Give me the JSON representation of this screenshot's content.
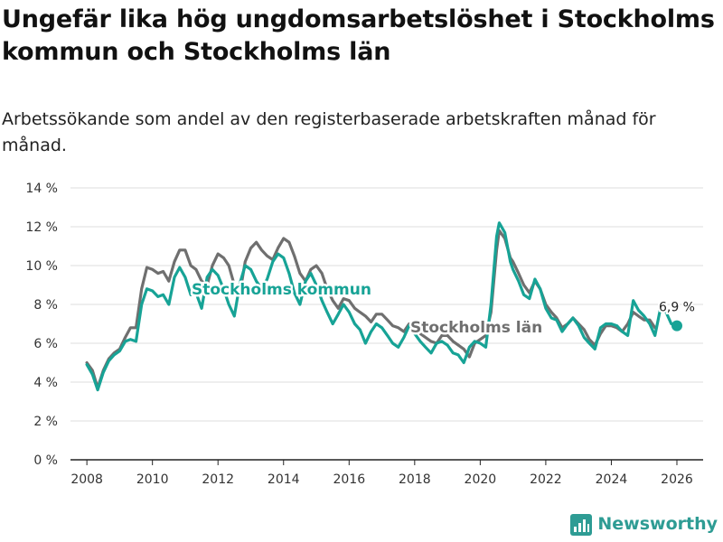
{
  "header": {
    "title": "Ungefär lika hög ungdomsarbetslöshet i Stockholms kommun och Stockholms län",
    "subtitle": "Arbetssökande som andel av den registerbaserade arbetskraften månad för månad."
  },
  "brand": {
    "name": "Newsworthy",
    "color": "#2e9c94"
  },
  "colors": {
    "kommun": "#17a396",
    "lan": "#6f6f6f",
    "grid": "#dddddd",
    "axis": "#222222"
  },
  "chart_data": {
    "type": "line",
    "title": "Ungefär lika hög ungdomsarbetslöshet i Stockholms kommun och Stockholms län",
    "xlabel": "",
    "ylabel": "",
    "xlim": [
      2007.5,
      2026.8
    ],
    "ylim": [
      0,
      14
    ],
    "grid": true,
    "legend": "inline labels",
    "y_ticks": [
      0,
      2,
      4,
      6,
      8,
      10,
      12,
      14
    ],
    "y_tick_labels": [
      "0 %",
      "2 %",
      "4 %",
      "6 %",
      "8 %",
      "10 %",
      "12 %",
      "14 %"
    ],
    "x_ticks": [
      2008,
      2010,
      2012,
      2014,
      2016,
      2018,
      2020,
      2022,
      2024,
      2026
    ],
    "x_tick_labels": [
      "2008",
      "2010",
      "2012",
      "2014",
      "2016",
      "2018",
      "2020",
      "2022",
      "2024",
      "2026"
    ],
    "series": [
      {
        "name": "Stockholms län",
        "label": "Stockholms län",
        "color": "#6f6f6f",
        "points": [
          [
            2008.0,
            5.0
          ],
          [
            2008.17,
            4.6
          ],
          [
            2008.33,
            3.7
          ],
          [
            2008.5,
            4.6
          ],
          [
            2008.67,
            5.2
          ],
          [
            2008.83,
            5.5
          ],
          [
            2009.0,
            5.7
          ],
          [
            2009.17,
            6.3
          ],
          [
            2009.33,
            6.8
          ],
          [
            2009.5,
            6.8
          ],
          [
            2009.67,
            8.8
          ],
          [
            2009.83,
            9.9
          ],
          [
            2010.0,
            9.8
          ],
          [
            2010.17,
            9.6
          ],
          [
            2010.33,
            9.7
          ],
          [
            2010.5,
            9.2
          ],
          [
            2010.67,
            10.2
          ],
          [
            2010.83,
            10.8
          ],
          [
            2011.0,
            10.8
          ],
          [
            2011.17,
            10.0
          ],
          [
            2011.33,
            9.8
          ],
          [
            2011.5,
            9.2
          ],
          [
            2011.67,
            9.0
          ],
          [
            2011.83,
            10.0
          ],
          [
            2012.0,
            10.6
          ],
          [
            2012.17,
            10.4
          ],
          [
            2012.33,
            10.0
          ],
          [
            2012.5,
            9.0
          ],
          [
            2012.67,
            8.6
          ],
          [
            2012.83,
            10.2
          ],
          [
            2013.0,
            10.9
          ],
          [
            2013.17,
            11.2
          ],
          [
            2013.33,
            10.8
          ],
          [
            2013.5,
            10.5
          ],
          [
            2013.67,
            10.3
          ],
          [
            2013.83,
            10.9
          ],
          [
            2014.0,
            11.4
          ],
          [
            2014.17,
            11.2
          ],
          [
            2014.33,
            10.5
          ],
          [
            2014.5,
            9.6
          ],
          [
            2014.67,
            9.2
          ],
          [
            2014.83,
            9.8
          ],
          [
            2015.0,
            10.0
          ],
          [
            2015.17,
            9.6
          ],
          [
            2015.33,
            8.8
          ],
          [
            2015.5,
            8.2
          ],
          [
            2015.67,
            7.8
          ],
          [
            2015.83,
            8.3
          ],
          [
            2016.0,
            8.2
          ],
          [
            2016.17,
            7.8
          ],
          [
            2016.33,
            7.6
          ],
          [
            2016.5,
            7.4
          ],
          [
            2016.67,
            7.1
          ],
          [
            2016.83,
            7.5
          ],
          [
            2017.0,
            7.5
          ],
          [
            2017.17,
            7.2
          ],
          [
            2017.33,
            6.9
          ],
          [
            2017.5,
            6.8
          ],
          [
            2017.67,
            6.6
          ],
          [
            2017.83,
            7.0
          ],
          [
            2018.0,
            6.8
          ],
          [
            2018.17,
            6.5
          ],
          [
            2018.33,
            6.3
          ],
          [
            2018.5,
            6.1
          ],
          [
            2018.67,
            6.0
          ],
          [
            2018.83,
            6.4
          ],
          [
            2019.0,
            6.4
          ],
          [
            2019.17,
            6.1
          ],
          [
            2019.33,
            5.9
          ],
          [
            2019.5,
            5.7
          ],
          [
            2019.67,
            5.3
          ],
          [
            2019.83,
            6.0
          ],
          [
            2020.0,
            6.2
          ],
          [
            2020.17,
            6.4
          ],
          [
            2020.33,
            7.6
          ],
          [
            2020.5,
            10.8
          ],
          [
            2020.58,
            11.8
          ],
          [
            2020.75,
            11.4
          ],
          [
            2020.92,
            10.4
          ],
          [
            2021.0,
            10.2
          ],
          [
            2021.17,
            9.6
          ],
          [
            2021.33,
            9.0
          ],
          [
            2021.5,
            8.6
          ],
          [
            2021.67,
            9.2
          ],
          [
            2021.83,
            8.8
          ],
          [
            2022.0,
            8.0
          ],
          [
            2022.17,
            7.6
          ],
          [
            2022.33,
            7.3
          ],
          [
            2022.5,
            6.8
          ],
          [
            2022.67,
            7.0
          ],
          [
            2022.83,
            7.3
          ],
          [
            2023.0,
            7.0
          ],
          [
            2023.17,
            6.7
          ],
          [
            2023.33,
            6.2
          ],
          [
            2023.5,
            5.9
          ],
          [
            2023.67,
            6.5
          ],
          [
            2023.83,
            6.9
          ],
          [
            2024.0,
            6.9
          ],
          [
            2024.17,
            6.8
          ],
          [
            2024.33,
            6.6
          ],
          [
            2024.5,
            7.0
          ],
          [
            2024.67,
            7.6
          ],
          [
            2024.83,
            7.4
          ],
          [
            2025.0,
            7.2
          ],
          [
            2025.17,
            7.2
          ],
          [
            2025.33,
            6.8
          ]
        ]
      },
      {
        "name": "Stockholms kommun",
        "label": "Stockholms kommun",
        "color": "#17a396",
        "points": [
          [
            2008.0,
            4.9
          ],
          [
            2008.17,
            4.4
          ],
          [
            2008.33,
            3.6
          ],
          [
            2008.5,
            4.5
          ],
          [
            2008.67,
            5.1
          ],
          [
            2008.83,
            5.4
          ],
          [
            2009.0,
            5.6
          ],
          [
            2009.17,
            6.1
          ],
          [
            2009.33,
            6.2
          ],
          [
            2009.5,
            6.1
          ],
          [
            2009.67,
            8.0
          ],
          [
            2009.83,
            8.8
          ],
          [
            2010.0,
            8.7
          ],
          [
            2010.17,
            8.4
          ],
          [
            2010.33,
            8.5
          ],
          [
            2010.5,
            8.0
          ],
          [
            2010.67,
            9.4
          ],
          [
            2010.83,
            9.9
          ],
          [
            2011.0,
            9.4
          ],
          [
            2011.17,
            8.5
          ],
          [
            2011.33,
            8.6
          ],
          [
            2011.5,
            7.8
          ],
          [
            2011.67,
            9.4
          ],
          [
            2011.83,
            9.8
          ],
          [
            2012.0,
            9.5
          ],
          [
            2012.17,
            8.8
          ],
          [
            2012.33,
            8.0
          ],
          [
            2012.5,
            7.4
          ],
          [
            2012.67,
            9.1
          ],
          [
            2012.83,
            10.0
          ],
          [
            2013.0,
            9.8
          ],
          [
            2013.17,
            9.2
          ],
          [
            2013.33,
            8.8
          ],
          [
            2013.5,
            9.3
          ],
          [
            2013.67,
            10.2
          ],
          [
            2013.83,
            10.6
          ],
          [
            2014.0,
            10.4
          ],
          [
            2014.17,
            9.6
          ],
          [
            2014.33,
            8.6
          ],
          [
            2014.5,
            8.0
          ],
          [
            2014.67,
            9.2
          ],
          [
            2014.83,
            9.6
          ],
          [
            2015.0,
            9.0
          ],
          [
            2015.17,
            8.2
          ],
          [
            2015.33,
            7.6
          ],
          [
            2015.5,
            7.0
          ],
          [
            2015.67,
            7.5
          ],
          [
            2015.83,
            8.0
          ],
          [
            2016.0,
            7.6
          ],
          [
            2016.17,
            7.0
          ],
          [
            2016.33,
            6.7
          ],
          [
            2016.5,
            6.0
          ],
          [
            2016.67,
            6.6
          ],
          [
            2016.83,
            7.0
          ],
          [
            2017.0,
            6.8
          ],
          [
            2017.17,
            6.4
          ],
          [
            2017.33,
            6.0
          ],
          [
            2017.5,
            5.8
          ],
          [
            2017.67,
            6.3
          ],
          [
            2017.83,
            6.9
          ],
          [
            2018.0,
            6.5
          ],
          [
            2018.17,
            6.1
          ],
          [
            2018.33,
            5.8
          ],
          [
            2018.5,
            5.5
          ],
          [
            2018.67,
            6.0
          ],
          [
            2018.83,
            6.1
          ],
          [
            2019.0,
            5.9
          ],
          [
            2019.17,
            5.5
          ],
          [
            2019.33,
            5.4
          ],
          [
            2019.5,
            5.0
          ],
          [
            2019.67,
            5.8
          ],
          [
            2019.83,
            6.1
          ],
          [
            2020.0,
            6.0
          ],
          [
            2020.17,
            5.8
          ],
          [
            2020.33,
            8.0
          ],
          [
            2020.5,
            11.5
          ],
          [
            2020.58,
            12.2
          ],
          [
            2020.75,
            11.7
          ],
          [
            2020.92,
            10.2
          ],
          [
            2021.0,
            9.8
          ],
          [
            2021.17,
            9.2
          ],
          [
            2021.33,
            8.5
          ],
          [
            2021.5,
            8.3
          ],
          [
            2021.67,
            9.3
          ],
          [
            2021.83,
            8.8
          ],
          [
            2022.0,
            7.8
          ],
          [
            2022.17,
            7.3
          ],
          [
            2022.33,
            7.2
          ],
          [
            2022.5,
            6.6
          ],
          [
            2022.67,
            7.0
          ],
          [
            2022.83,
            7.3
          ],
          [
            2023.0,
            6.9
          ],
          [
            2023.17,
            6.3
          ],
          [
            2023.33,
            6.0
          ],
          [
            2023.5,
            5.7
          ],
          [
            2023.67,
            6.8
          ],
          [
            2023.83,
            7.0
          ],
          [
            2024.0,
            7.0
          ],
          [
            2024.17,
            6.9
          ],
          [
            2024.33,
            6.6
          ],
          [
            2024.5,
            6.4
          ],
          [
            2024.67,
            8.2
          ],
          [
            2024.83,
            7.7
          ],
          [
            2025.0,
            7.4
          ],
          [
            2025.17,
            7.0
          ],
          [
            2025.33,
            6.4
          ],
          [
            2025.5,
            7.8
          ],
          [
            2025.67,
            7.6
          ],
          [
            2025.83,
            7.0
          ],
          [
            2026.0,
            6.9
          ]
        ]
      }
    ],
    "annotations": [
      {
        "series": "Stockholms kommun",
        "x": 2026.0,
        "y": 6.9,
        "text": "6,9 %"
      }
    ]
  }
}
